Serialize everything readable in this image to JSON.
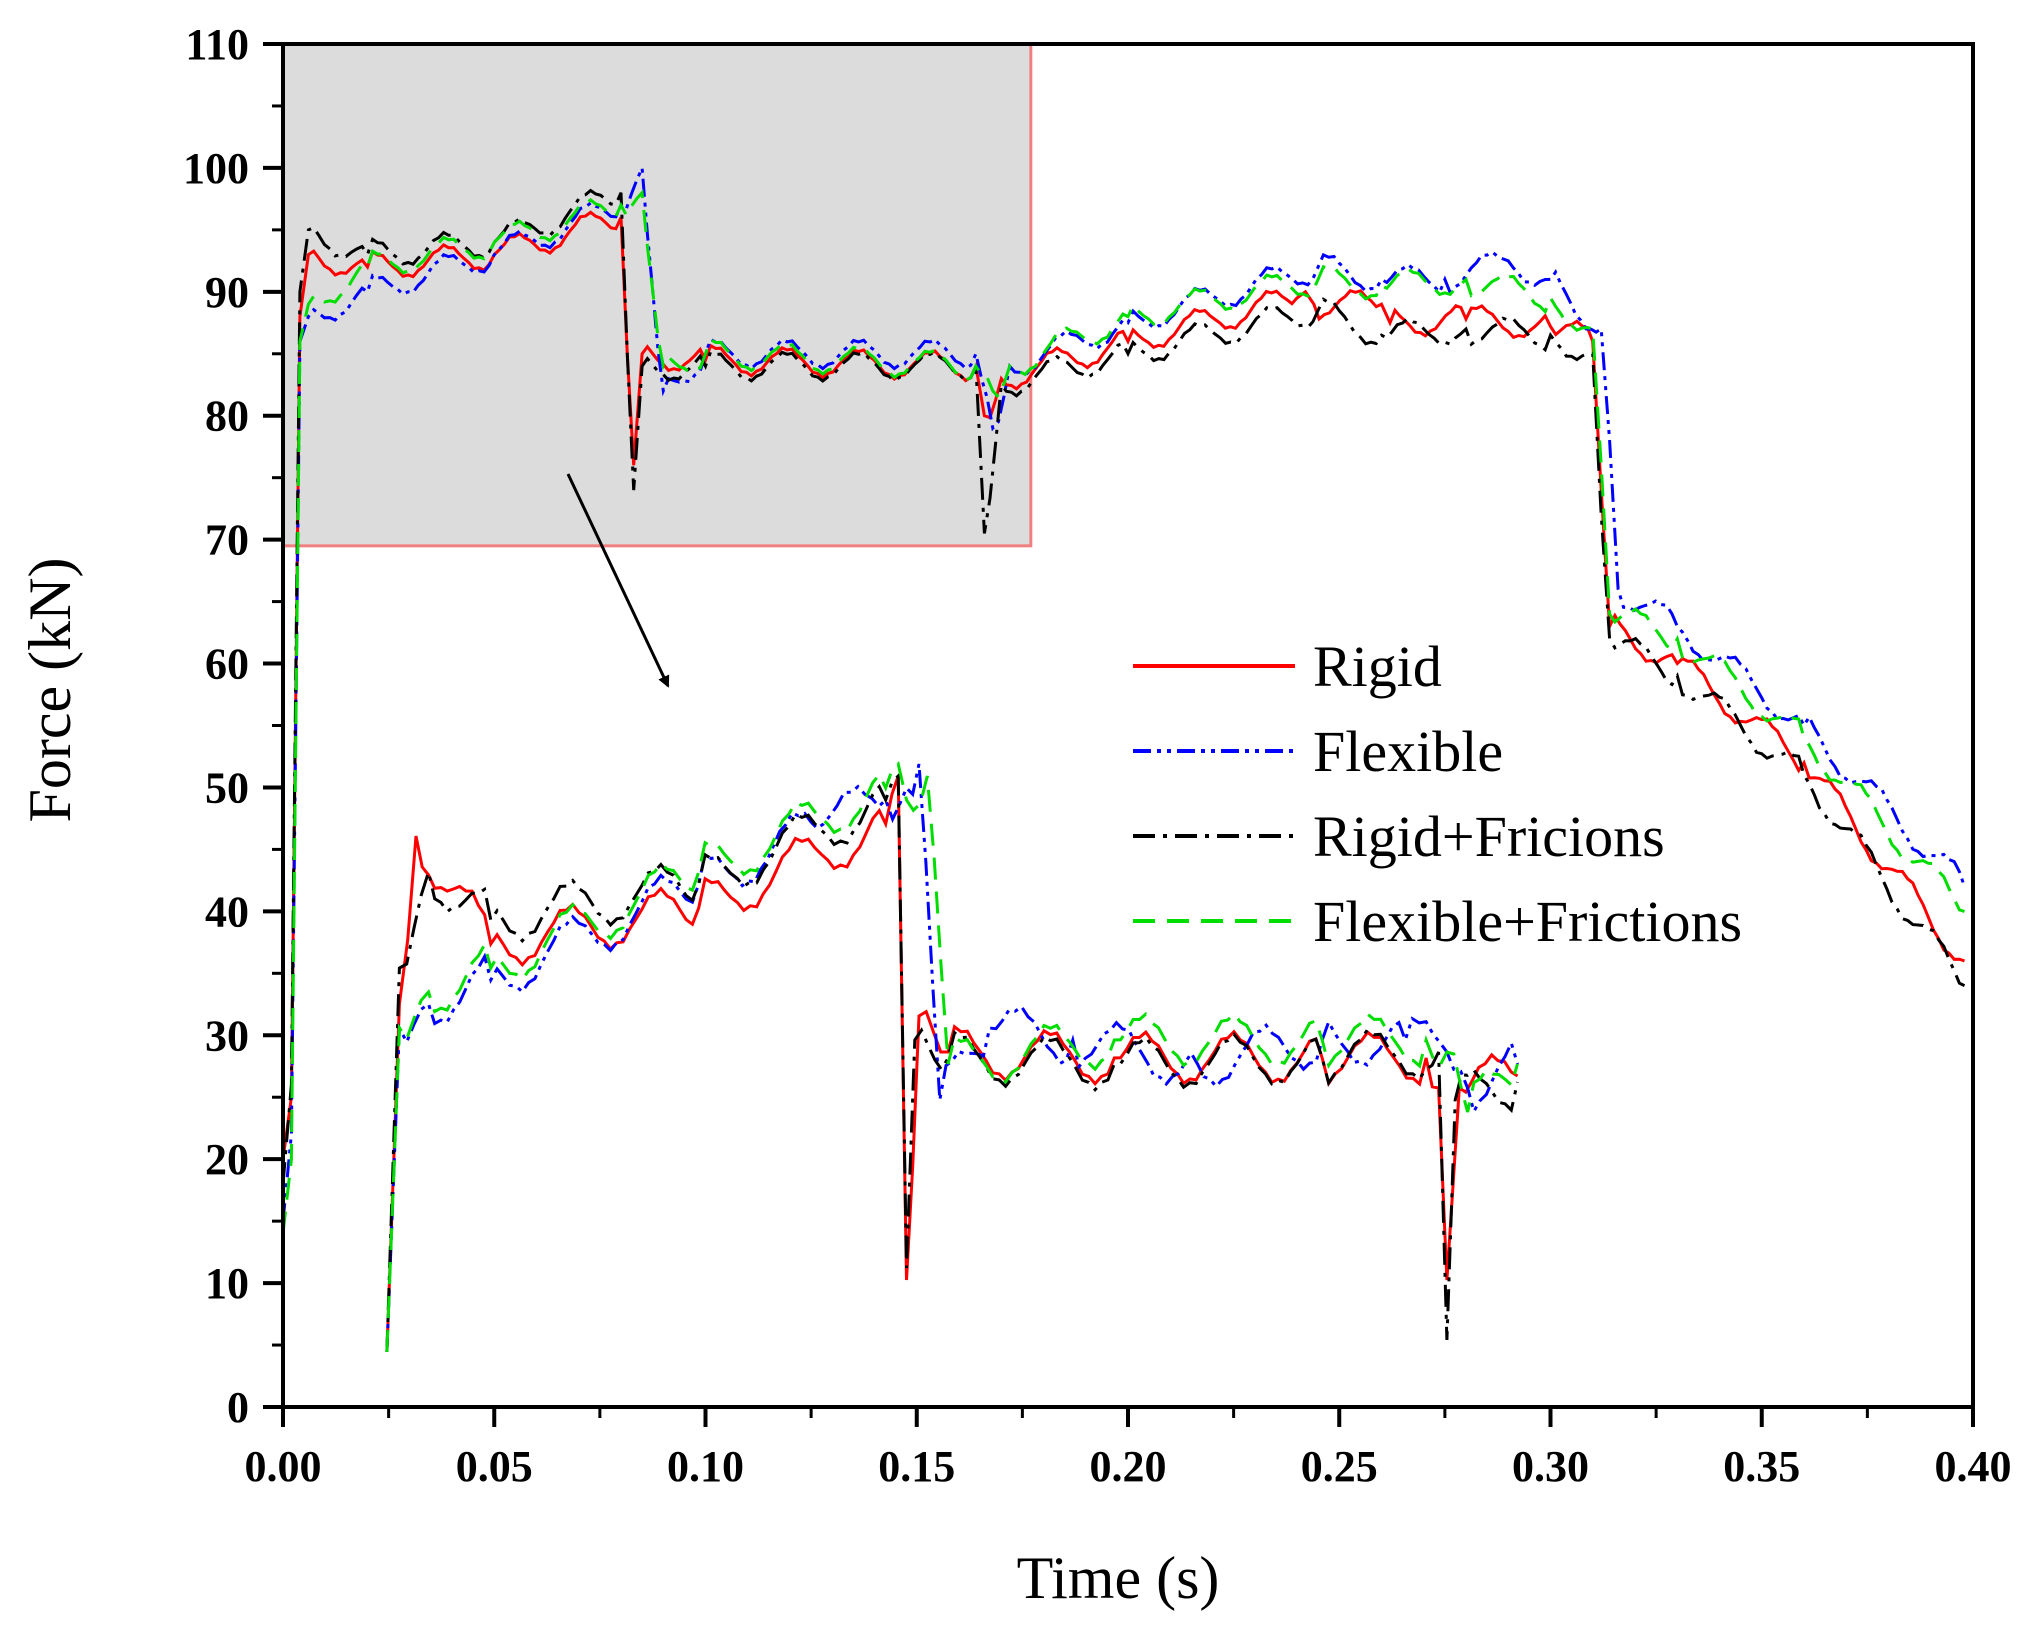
{
  "chart_data": {
    "type": "line",
    "title": "",
    "xlabel": "Time (s)",
    "ylabel": "Force (kN)",
    "xlim": [
      0.0,
      0.4
    ],
    "ylim": [
      0,
      110
    ],
    "x_ticks": [
      "0.00",
      "0.05",
      "0.10",
      "0.15",
      "0.20",
      "0.25",
      "0.30",
      "0.35",
      "0.40"
    ],
    "y_ticks": [
      "0",
      "10",
      "20",
      "30",
      "40",
      "50",
      "60",
      "70",
      "80",
      "90",
      "100",
      "110"
    ],
    "grid": false,
    "legend_position": "center-right",
    "zoom_region": {
      "x_range": [
        0.0,
        0.177
      ],
      "y_range": [
        69.5,
        110
      ],
      "fill_color": "#dcdcdc",
      "border_color": "#f08080"
    },
    "series": [
      {
        "name": "Rigid",
        "color": "#ff0000",
        "style": "solid",
        "x": [
          0.0,
          0.002,
          0.004,
          0.006,
          0.02,
          0.05,
          0.08,
          0.083,
          0.085,
          0.1,
          0.164,
          0.166,
          0.17,
          0.2,
          0.24,
          0.242,
          0.244,
          0.26,
          0.262,
          0.28,
          0.3,
          0.31,
          0.312,
          0.314,
          0.33,
          0.36,
          0.398
        ],
        "y": [
          20,
          25,
          88,
          93,
          92,
          93,
          96,
          76,
          85,
          84.5,
          84,
          80,
          83,
          86,
          89.5,
          90,
          89,
          89,
          87.5,
          87.8,
          87.2,
          86,
          74,
          63,
          60,
          52,
          36
        ],
        "zoom_x": [
          0.025,
          0.028,
          0.032,
          0.05,
          0.1,
          0.145,
          0.148,
          0.15,
          0.153,
          0.16,
          0.2,
          0.25,
          0.275,
          0.278,
          0.28,
          0.283,
          0.297
        ],
        "zoom_y": [
          4,
          33,
          47,
          38,
          41,
          48,
          52,
          10,
          32,
          29,
          28.5,
          28.5,
          28.5,
          26,
          10,
          26,
          27
        ]
      },
      {
        "name": "Flexible",
        "color": "#0000ff",
        "style": "dash-dot-dot",
        "x": [
          0.0,
          0.002,
          0.004,
          0.006,
          0.02,
          0.05,
          0.08,
          0.085,
          0.09,
          0.1,
          0.164,
          0.168,
          0.172,
          0.2,
          0.245,
          0.26,
          0.275,
          0.29,
          0.3,
          0.312,
          0.314,
          0.316,
          0.33,
          0.36,
          0.398
        ],
        "y": [
          15,
          22,
          86,
          88,
          90,
          93,
          97,
          100,
          82,
          85,
          85,
          79,
          84,
          87.5,
          92,
          91,
          91,
          92.5,
          91,
          87,
          78,
          66,
          63,
          55,
          42
        ],
        "zoom_x": [
          0.025,
          0.028,
          0.035,
          0.05,
          0.1,
          0.13,
          0.145,
          0.15,
          0.153,
          0.158,
          0.17,
          0.19,
          0.22,
          0.25,
          0.27,
          0.28,
          0.285,
          0.297
        ],
        "zoom_y": [
          4,
          31,
          33,
          35,
          43,
          48,
          50,
          51,
          53,
          25,
          31,
          30,
          28,
          30,
          30,
          29,
          26,
          28
        ]
      },
      {
        "name": "Rigid+Fricions",
        "color": "#000000",
        "style": "dash-dot",
        "x": [
          0.0,
          0.002,
          0.004,
          0.006,
          0.02,
          0.05,
          0.08,
          0.083,
          0.085,
          0.1,
          0.164,
          0.166,
          0.17,
          0.2,
          0.245,
          0.26,
          0.28,
          0.3,
          0.31,
          0.312,
          0.314,
          0.33,
          0.36,
          0.398
        ],
        "y": [
          18,
          26,
          90,
          95,
          93,
          94,
          98,
          74,
          84,
          84,
          84,
          70.5,
          82.5,
          85,
          88.5,
          86.5,
          87,
          86.5,
          85,
          72,
          62,
          59,
          51,
          34
        ],
        "zoom_x": [
          0.025,
          0.028,
          0.035,
          0.05,
          0.1,
          0.145,
          0.148,
          0.15,
          0.152,
          0.16,
          0.2,
          0.25,
          0.278,
          0.28,
          0.282,
          0.297
        ],
        "zoom_y": [
          4,
          36,
          44,
          40,
          43,
          50,
          52,
          11,
          30,
          28.5,
          28,
          28.5,
          29,
          5,
          25,
          26.5
        ]
      },
      {
        "name": "Flexible+Frictions",
        "color": "#00dd00",
        "style": "dashed",
        "x": [
          0.0,
          0.002,
          0.004,
          0.006,
          0.02,
          0.05,
          0.08,
          0.085,
          0.09,
          0.1,
          0.164,
          0.168,
          0.172,
          0.2,
          0.245,
          0.26,
          0.28,
          0.3,
          0.31,
          0.312,
          0.314,
          0.33,
          0.36,
          0.398
        ],
        "y": [
          14,
          20,
          86,
          89,
          92,
          94,
          97,
          98,
          84,
          85,
          84,
          82,
          84,
          88,
          91,
          90.5,
          91,
          89.5,
          87,
          76,
          64,
          62,
          54,
          40
        ],
        "zoom_x": [
          0.025,
          0.028,
          0.035,
          0.05,
          0.1,
          0.145,
          0.148,
          0.15,
          0.155,
          0.16,
          0.2,
          0.25,
          0.275,
          0.28,
          0.285,
          0.297
        ],
        "zoom_y": [
          4,
          31,
          34,
          36,
          44,
          51,
          53,
          50,
          52,
          28,
          30,
          30,
          30,
          29,
          24,
          28
        ]
      }
    ]
  }
}
